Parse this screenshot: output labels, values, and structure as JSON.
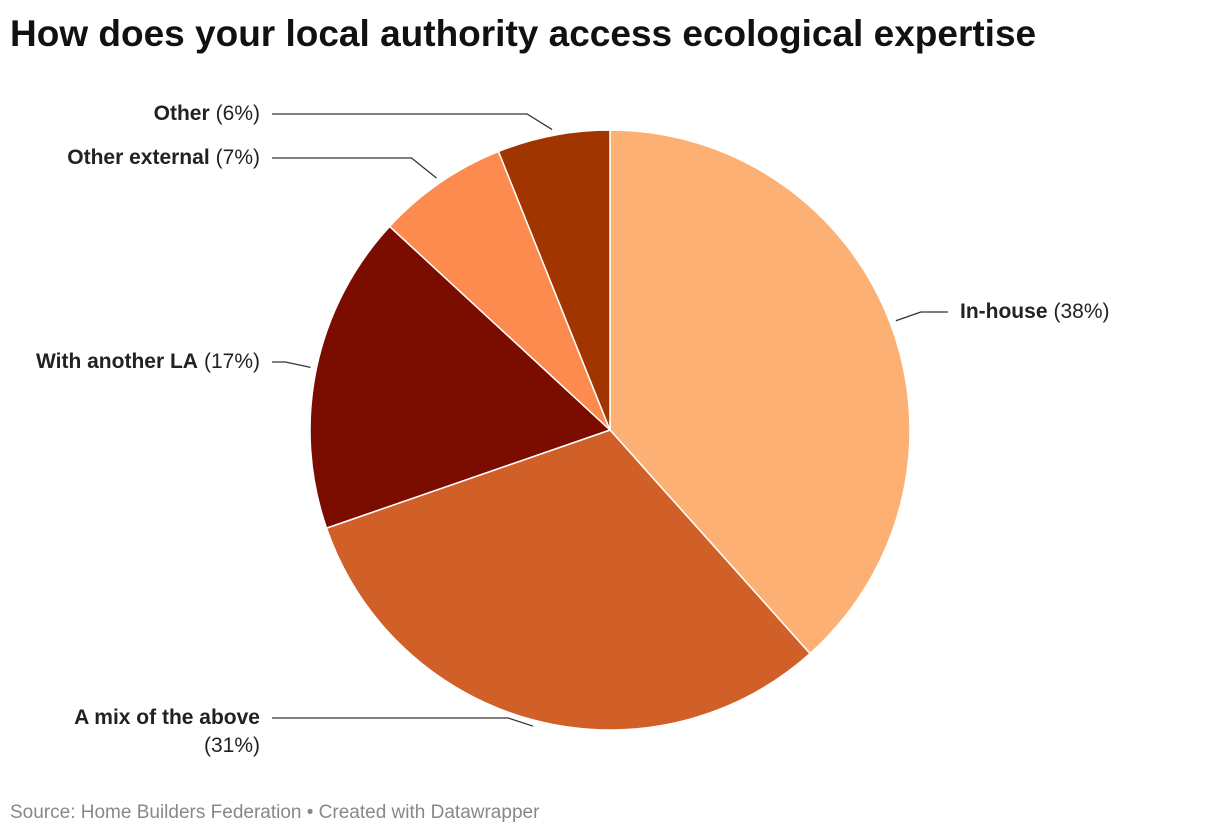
{
  "chart_data": {
    "type": "pie",
    "title": "How does your local authority access ecological expertise",
    "categories": [
      "In-house",
      "A mix of the above",
      "With another LA",
      "Other external",
      "Other"
    ],
    "values": [
      38,
      31,
      17,
      7,
      6
    ],
    "value_labels": [
      "(38%)",
      "(31%)",
      "(17%)",
      "(7%)",
      "(6%)"
    ],
    "colors": [
      "#fdb073",
      "#d05f28",
      "#7a0c00",
      "#fd8a4e",
      "#a13500"
    ],
    "source": "Source: Home Builders Federation • Created with Datawrapper"
  }
}
